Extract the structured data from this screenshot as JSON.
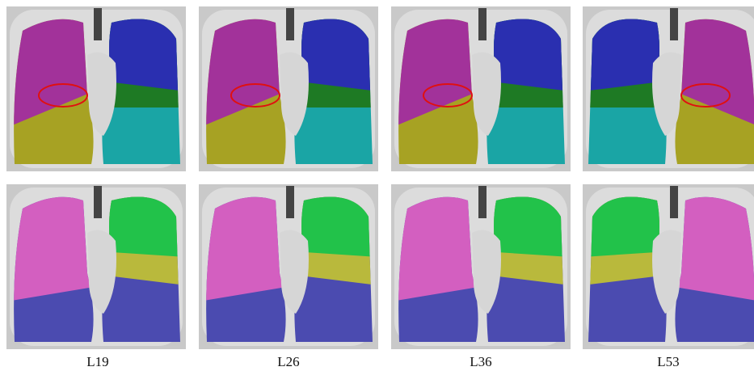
{
  "labels": [
    "L19",
    "L26",
    "L36",
    "L53"
  ]
}
